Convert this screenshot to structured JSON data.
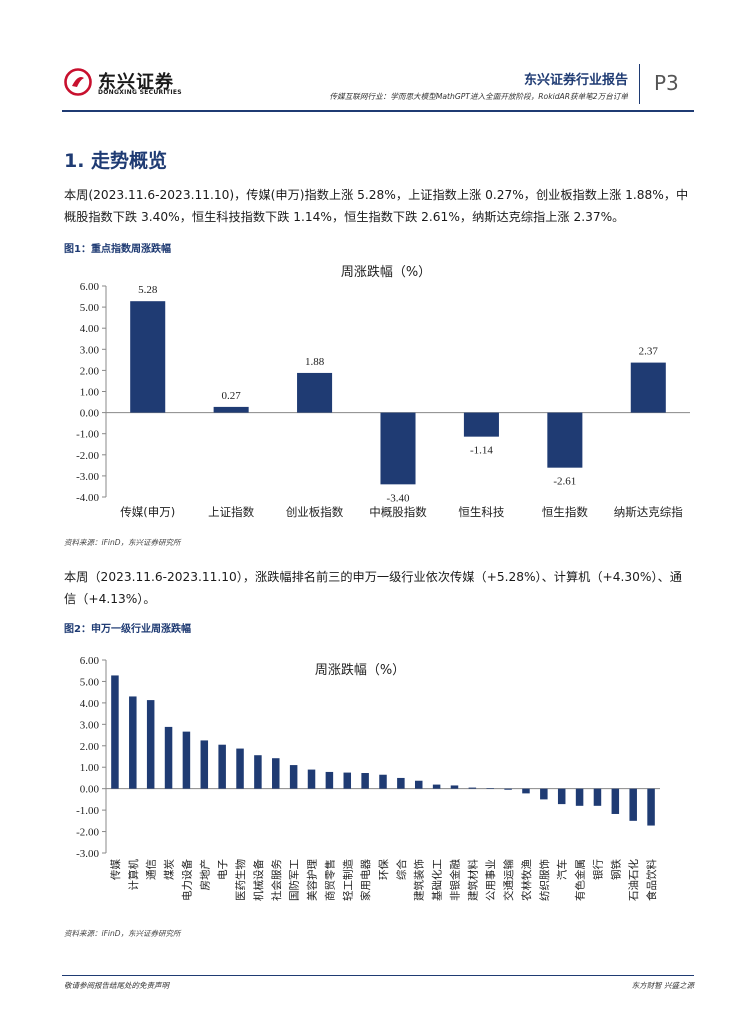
{
  "header": {
    "logo_cn": "东兴证券",
    "logo_en": "DONGXING SECURITIES",
    "report_type": "东兴证券行业报告",
    "subtitle": "传媒互联网行业：学而思大模型MathGPT进入全面开放阶段，RokidAR获单笔2万台订单",
    "page": "P3",
    "brand_color": "#1f3b73",
    "logo_color": "#c8102e"
  },
  "section": {
    "title": "1. 走势概览"
  },
  "paragraph1": "本周(2023.11.6-2023.11.10)，传媒(申万)指数上涨 5.28%，上证指数上涨 0.27%，创业板指数上涨 1.88%，中概股指数下跌 3.40%，恒生科技指数下跌 1.14%，恒生指数下跌 2.61%，纳斯达克综指上涨 2.37%。",
  "figure1": {
    "title": "图1：重点指数周涨跌幅",
    "source": "资料来源：iFinD，东兴证券研究所"
  },
  "paragraph2": "本周（2023.11.6-2023.11.10），涨跌幅排名前三的申万一级行业依次传媒（+5.28%）、计算机（+4.30%）、通信（+4.13%）。",
  "figure2": {
    "title": "图2：申万一级行业周涨跌幅",
    "source": "资料来源：iFinD，东兴证券研究所"
  },
  "footer": {
    "disclaimer": "敬请参阅报告结尾处的免责声明",
    "slogan": "东方财智 兴盛之源"
  },
  "chart_data": [
    {
      "type": "bar",
      "title": "周涨跌幅（%）",
      "categories": [
        "传媒(申万)",
        "上证指数",
        "创业板指数",
        "中概股指数",
        "恒生科技",
        "恒生指数",
        "纳斯达克综指"
      ],
      "values": [
        5.28,
        0.27,
        1.88,
        -3.4,
        -1.14,
        -2.61,
        2.37
      ],
      "value_labels": [
        "5.28",
        "0.27",
        "1.88",
        "-3.40",
        "-1.14",
        "-2.61",
        "2.37"
      ],
      "ylim": [
        -4,
        6
      ],
      "yticks": [
        "6.00",
        "5.00",
        "4.00",
        "3.00",
        "2.00",
        "1.00",
        "0.00",
        "-1.00",
        "-2.00",
        "-3.00",
        "-4.00"
      ],
      "color": "#1f3b73",
      "legend": "none"
    },
    {
      "type": "bar",
      "title": "周涨跌幅（%）",
      "categories": [
        "传媒",
        "计算机",
        "通信",
        "煤炭",
        "电力设备",
        "房地产",
        "电子",
        "医药生物",
        "机械设备",
        "社会服务",
        "国防军工",
        "美容护理",
        "商贸零售",
        "轻工制造",
        "家用电器",
        "环保",
        "综合",
        "建筑装饰",
        "基础化工",
        "非银金融",
        "建筑材料",
        "公用事业",
        "交通运输",
        "农林牧渔",
        "纺织服饰",
        "汽车",
        "有色金属",
        "银行",
        "钢铁",
        "石油石化",
        "食品饮料"
      ],
      "values": [
        5.28,
        4.3,
        4.13,
        2.88,
        2.66,
        2.25,
        2.05,
        1.87,
        1.56,
        1.42,
        1.1,
        0.89,
        0.78,
        0.75,
        0.73,
        0.65,
        0.5,
        0.37,
        0.19,
        0.15,
        0.05,
        0.02,
        -0.05,
        -0.22,
        -0.5,
        -0.72,
        -0.8,
        -0.8,
        -1.18,
        -1.5,
        -1.72
      ],
      "ylim": [
        -3,
        6
      ],
      "yticks": [
        "6.00",
        "5.00",
        "4.00",
        "3.00",
        "2.00",
        "1.00",
        "0.00",
        "-1.00",
        "-2.00",
        "-3.00"
      ],
      "color": "#1f3b73",
      "legend": "none"
    }
  ]
}
